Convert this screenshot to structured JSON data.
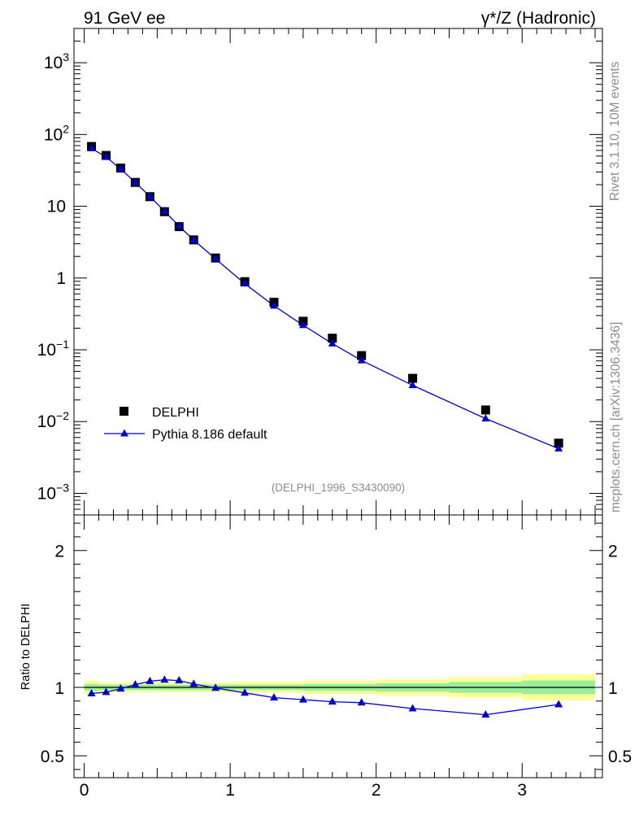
{
  "header": {
    "left": "91 GeV ee",
    "right_sym": "γ*/Z (Hadronic)"
  },
  "side": {
    "rivet": "Rivet 3.1.10,  10M events",
    "mcplots": "mcplots.cern.ch [arXiv:1306.3436]"
  },
  "analysis_id": "(DELPHI_1996_S3430090)",
  "colors": {
    "data": "#000000",
    "mc": "#0000cc",
    "band_outer": "#ffff99",
    "band_inner": "#99ee99"
  },
  "chart_data": [
    {
      "type": "scatter",
      "panel": "main",
      "yscale": "log",
      "xlim": [
        -0.07,
        3.55
      ],
      "ylim": [
        0.0005,
        3000
      ],
      "yticks": [
        {
          "v": 0.001,
          "m": "10",
          "e": "−3"
        },
        {
          "v": 0.01,
          "m": "10",
          "e": "−2"
        },
        {
          "v": 0.1,
          "m": "10",
          "e": "−1"
        },
        {
          "v": 1,
          "m": "1",
          "e": ""
        },
        {
          "v": 10,
          "m": "10",
          "e": ""
        },
        {
          "v": 100,
          "m": "10",
          "e": "2"
        },
        {
          "v": 1000,
          "m": "10",
          "e": "3"
        }
      ],
      "legend_position": "lower-left",
      "series": [
        {
          "name": "DELPHI",
          "marker": "square",
          "x": [
            0.05,
            0.15,
            0.25,
            0.35,
            0.45,
            0.55,
            0.65,
            0.75,
            0.9,
            1.1,
            1.3,
            1.5,
            1.7,
            1.9,
            2.25,
            2.75,
            3.25
          ],
          "y": [
            68,
            51,
            34,
            21.5,
            13.6,
            8.4,
            5.2,
            3.4,
            1.9,
            0.89,
            0.46,
            0.25,
            0.145,
            0.083,
            0.04,
            0.0145,
            0.005
          ]
        },
        {
          "name": "Pythia 8.186 default",
          "marker": "triangle",
          "x": [
            0.05,
            0.15,
            0.25,
            0.35,
            0.45,
            0.55,
            0.65,
            0.75,
            0.9,
            1.1,
            1.3,
            1.5,
            1.7,
            1.9,
            2.25,
            2.75,
            3.25
          ],
          "y": [
            64,
            48.5,
            33,
            21.5,
            13.7,
            8.55,
            5.3,
            3.38,
            1.85,
            0.835,
            0.41,
            0.22,
            0.122,
            0.071,
            0.032,
            0.011,
            0.0042
          ]
        }
      ]
    },
    {
      "type": "line",
      "panel": "ratio",
      "ylabel": "Ratio to DELPHI",
      "xlim": [
        -0.07,
        3.55
      ],
      "ylim": [
        0.34,
        2.26
      ],
      "xticks": [
        0,
        1,
        2,
        3
      ],
      "yticks": [
        0.5,
        1,
        2
      ],
      "series": [
        {
          "name": "Pythia 8.186 default",
          "x": [
            0.05,
            0.15,
            0.25,
            0.35,
            0.45,
            0.55,
            0.65,
            0.75,
            0.9,
            1.1,
            1.3,
            1.5,
            1.7,
            1.9,
            2.25,
            2.75,
            3.25
          ],
          "y": [
            0.955,
            0.965,
            0.99,
            1.02,
            1.045,
            1.055,
            1.05,
            1.025,
            0.995,
            0.96,
            0.925,
            0.91,
            0.895,
            0.888,
            0.845,
            0.8,
            0.875
          ]
        }
      ],
      "uncertainty_bands": {
        "edges": [
          0,
          0.1,
          0.5,
          1.0,
          1.5,
          2.0,
          2.5,
          3.0,
          3.5
        ],
        "inner": [
          0.025,
          0.02,
          0.02,
          0.02,
          0.025,
          0.03,
          0.04,
          0.05
        ],
        "outer": [
          0.05,
          0.035,
          0.035,
          0.04,
          0.05,
          0.06,
          0.075,
          0.095
        ]
      }
    }
  ]
}
